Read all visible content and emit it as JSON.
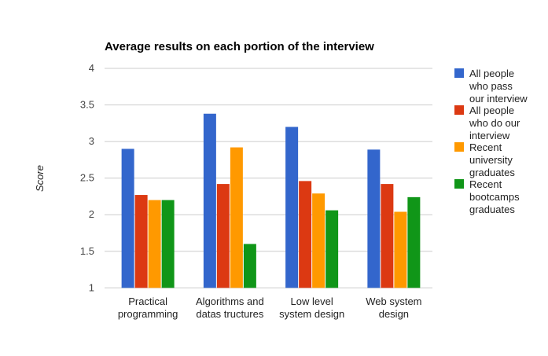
{
  "chart_data": {
    "type": "bar",
    "title": "Average results on each portion of the interview",
    "xlabel": "",
    "ylabel": "Score",
    "ylim": [
      1,
      4
    ],
    "yticks": [
      "1",
      "1.5",
      "2",
      "2.5",
      "3",
      "3.5",
      "4"
    ],
    "grid": true,
    "legend_position": "right",
    "categories": [
      [
        "Practical",
        "programming"
      ],
      [
        "Algorithms and",
        "datas tructures"
      ],
      [
        "Low level",
        "system design"
      ],
      [
        "Web system",
        "design"
      ]
    ],
    "series": [
      {
        "name": [
          "All people",
          "who pass",
          "our interview"
        ],
        "color": "#3366cc",
        "values": [
          2.9,
          3.38,
          3.2,
          2.89
        ]
      },
      {
        "name": [
          "All people",
          "who do our",
          "interview"
        ],
        "color": "#dc3912",
        "values": [
          2.27,
          2.42,
          2.46,
          2.42
        ]
      },
      {
        "name": [
          "Recent",
          "university",
          "graduates"
        ],
        "color": "#ff9900",
        "values": [
          2.2,
          2.92,
          2.29,
          2.04
        ]
      },
      {
        "name": [
          "Recent",
          "bootcamps",
          "graduates"
        ],
        "color": "#109618",
        "values": [
          2.2,
          1.6,
          2.06,
          2.24
        ]
      }
    ]
  }
}
